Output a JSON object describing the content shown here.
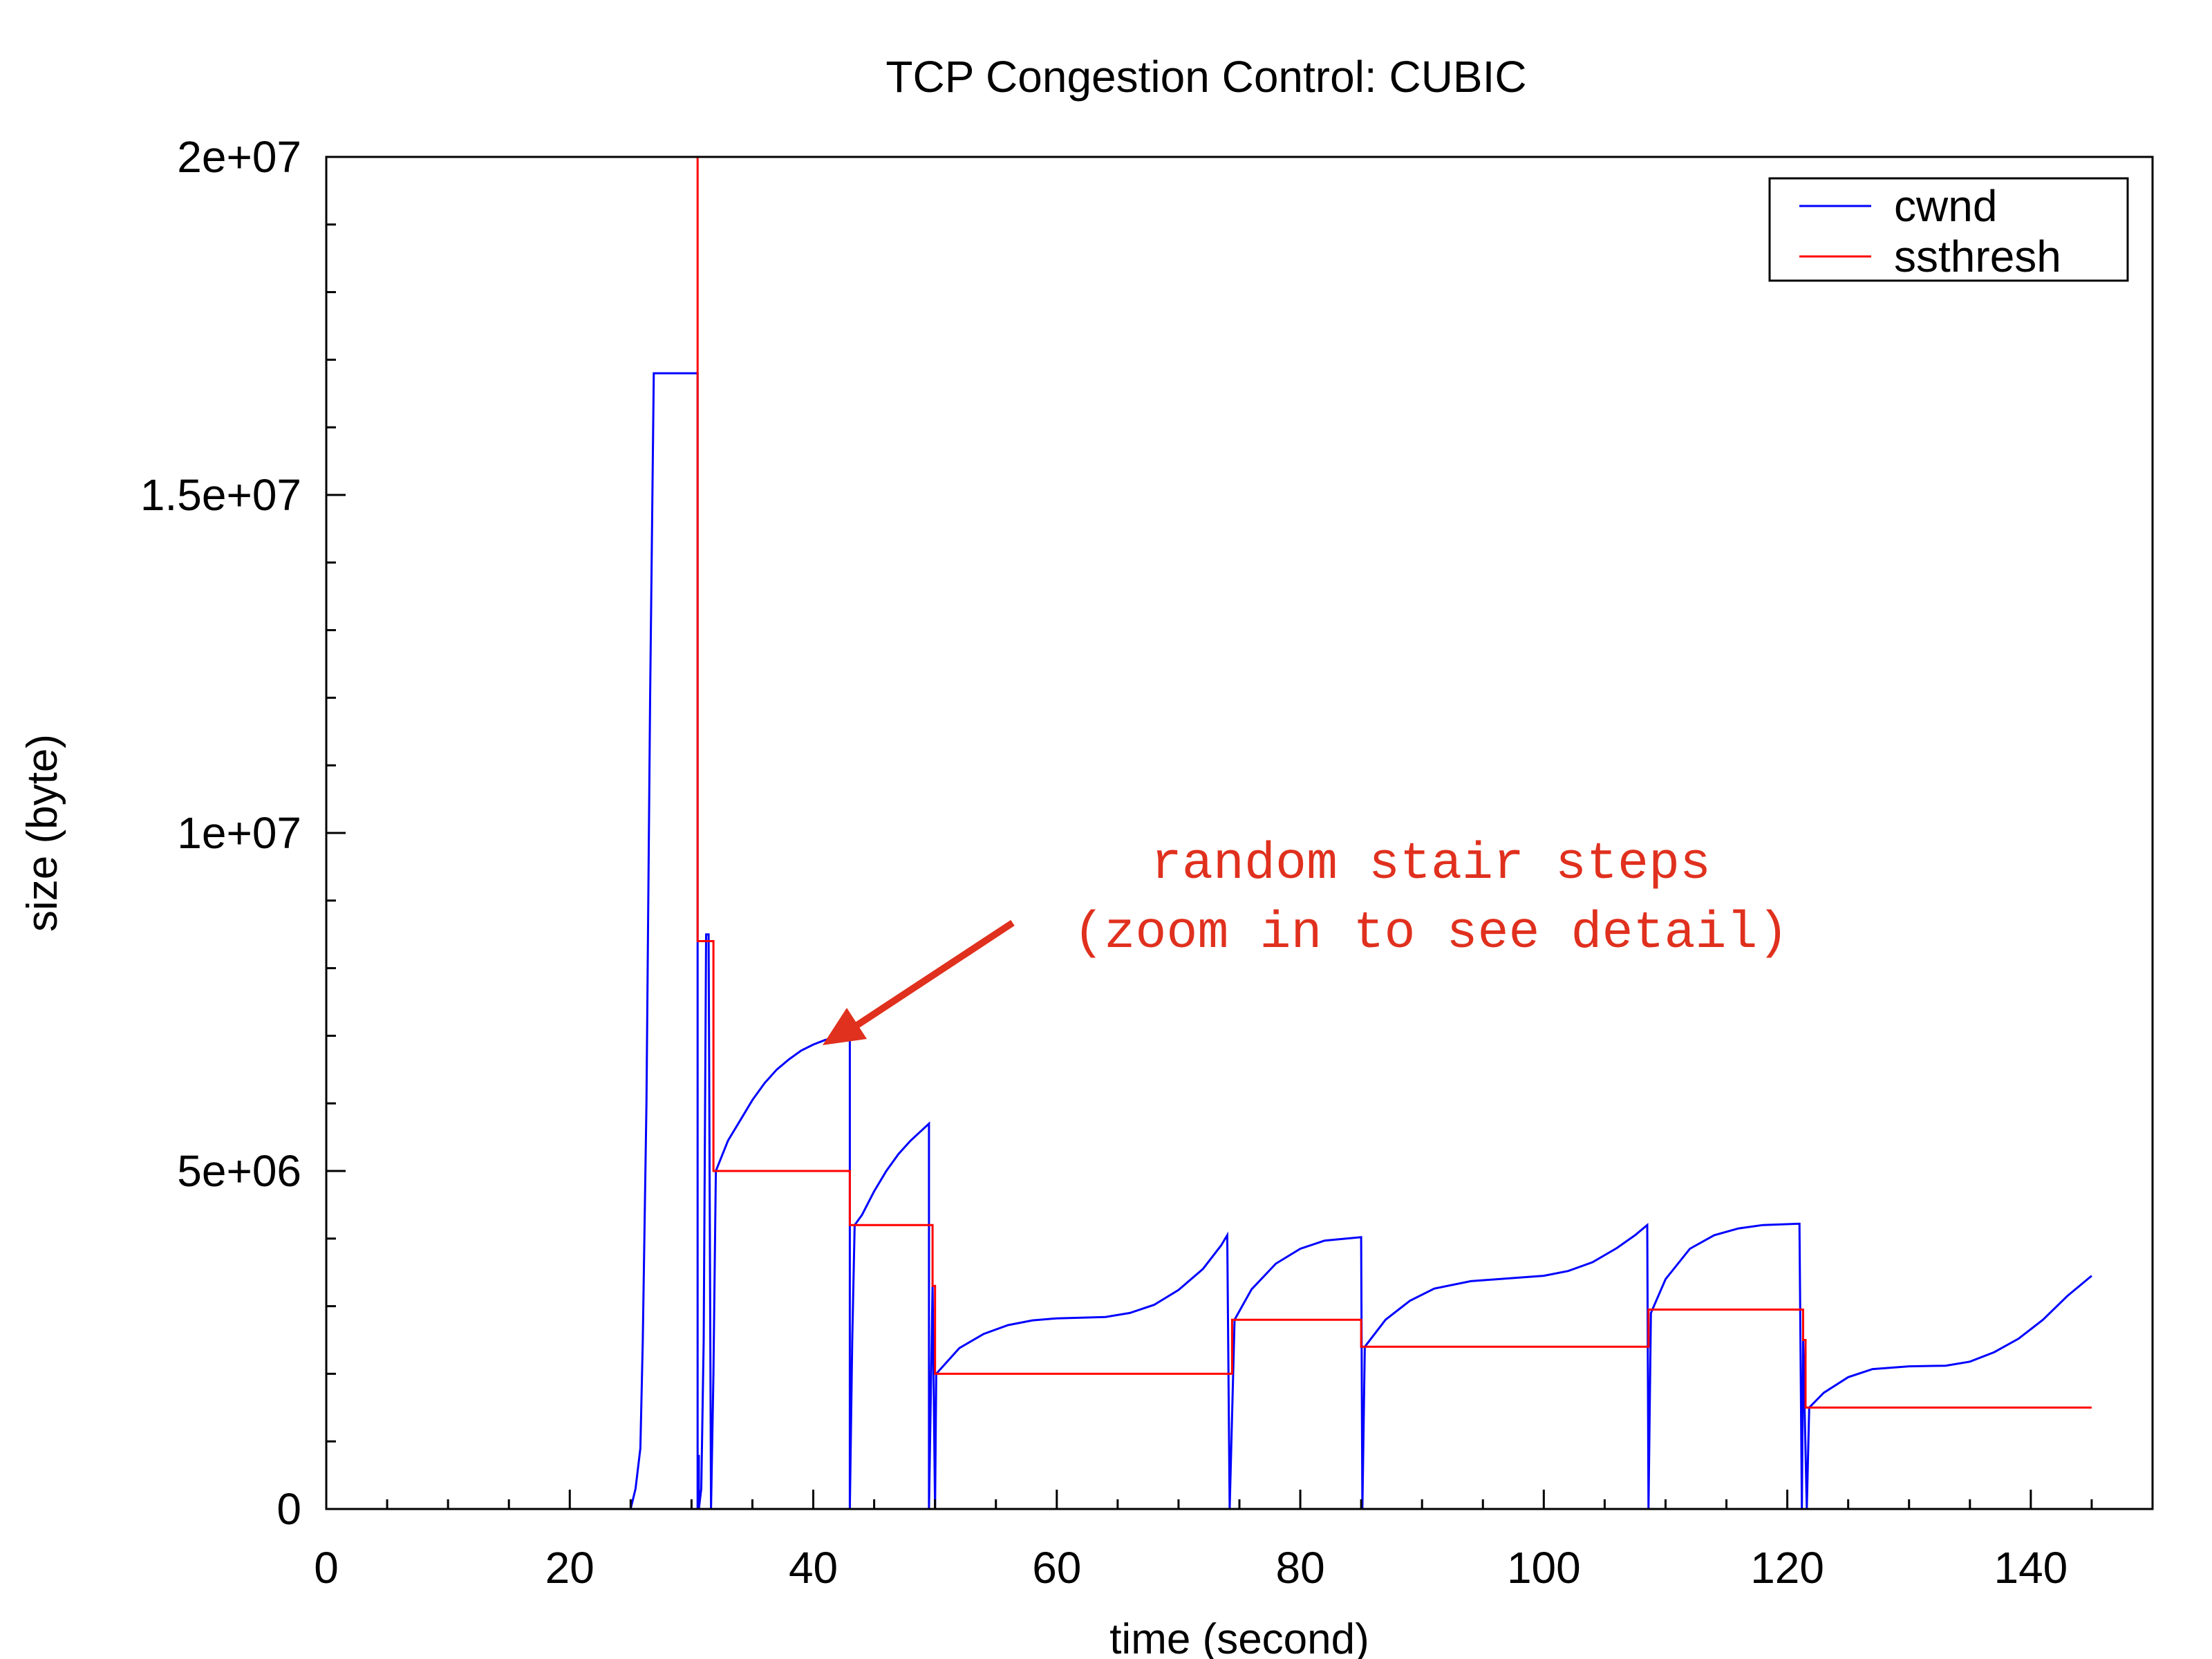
{
  "chart_data": {
    "type": "line",
    "title": "TCP Congestion Control: CUBIC",
    "xlabel": "time (second)",
    "ylabel": "size (byte)",
    "xlim": [
      0,
      150
    ],
    "ylim": [
      0,
      20000000
    ],
    "x_ticks": [
      0,
      20,
      40,
      60,
      80,
      100,
      120,
      140
    ],
    "x_tick_labels": [
      "0",
      "20",
      "40",
      "60",
      "80",
      "100",
      "120",
      "140"
    ],
    "x_minor_step": 5,
    "y_ticks": [
      0,
      5000000,
      10000000,
      15000000,
      20000000
    ],
    "y_tick_labels": [
      "0",
      "5e+06",
      "1e+07",
      "1.5e+07",
      "2e+07"
    ],
    "y_minor_step": 1000000,
    "grid": false,
    "legend_position": "top-right",
    "colors": {
      "cwnd": "#0000ff",
      "ssthresh": "#ff0000",
      "annotation": "#e0301e"
    },
    "series": [
      {
        "name": "cwnd",
        "points": [
          [
            0,
            0
          ],
          [
            25,
            0
          ],
          [
            25.4,
            300000
          ],
          [
            25.8,
            900000
          ],
          [
            26,
            2500000
          ],
          [
            26.3,
            6000000
          ],
          [
            26.6,
            12000000
          ],
          [
            26.9,
            16800000
          ],
          [
            30.5,
            16800000
          ],
          [
            30.5,
            0
          ],
          [
            30.6,
            800000
          ],
          [
            30.6,
            0
          ],
          [
            30.8,
            300000
          ],
          [
            31,
            2500000
          ],
          [
            31.2,
            8500000
          ],
          [
            31.4,
            8500000
          ],
          [
            31.6,
            0
          ],
          [
            31.8,
            2000000
          ],
          [
            32,
            5000000
          ],
          [
            33,
            5450000
          ],
          [
            34,
            5750000
          ],
          [
            35,
            6050000
          ],
          [
            36,
            6300000
          ],
          [
            37,
            6500000
          ],
          [
            38,
            6650000
          ],
          [
            39,
            6780000
          ],
          [
            40,
            6870000
          ],
          [
            41,
            6940000
          ],
          [
            42,
            6980000
          ],
          [
            43,
            7000000
          ],
          [
            43,
            0
          ],
          [
            43.2,
            2500000
          ],
          [
            43.4,
            4200000
          ],
          [
            44,
            4350000
          ],
          [
            45,
            4700000
          ],
          [
            46,
            5000000
          ],
          [
            47,
            5250000
          ],
          [
            48,
            5450000
          ],
          [
            49.5,
            5700000
          ],
          [
            49.5,
            0
          ],
          [
            49.8,
            3300000
          ],
          [
            50,
            0
          ],
          [
            50.1,
            2000000
          ],
          [
            52,
            2380000
          ],
          [
            54,
            2590000
          ],
          [
            56,
            2720000
          ],
          [
            58,
            2790000
          ],
          [
            60,
            2820000
          ],
          [
            62,
            2830000
          ],
          [
            64,
            2840000
          ],
          [
            66,
            2900000
          ],
          [
            68,
            3020000
          ],
          [
            70,
            3240000
          ],
          [
            72,
            3550000
          ],
          [
            73.5,
            3900000
          ],
          [
            74,
            4050000
          ],
          [
            74.2,
            0
          ],
          [
            74.6,
            2800000
          ],
          [
            76,
            3250000
          ],
          [
            78,
            3630000
          ],
          [
            80,
            3850000
          ],
          [
            82,
            3970000
          ],
          [
            85,
            4020000
          ],
          [
            85.1,
            0
          ],
          [
            85.3,
            2400000
          ],
          [
            87,
            2800000
          ],
          [
            89,
            3080000
          ],
          [
            91,
            3260000
          ],
          [
            94,
            3370000
          ],
          [
            97,
            3410000
          ],
          [
            100,
            3450000
          ],
          [
            102,
            3520000
          ],
          [
            104,
            3650000
          ],
          [
            106,
            3860000
          ],
          [
            107.5,
            4050000
          ],
          [
            108.5,
            4200000
          ],
          [
            108.6,
            0
          ],
          [
            108.8,
            2900000
          ],
          [
            110,
            3400000
          ],
          [
            112,
            3850000
          ],
          [
            114,
            4050000
          ],
          [
            116,
            4150000
          ],
          [
            118,
            4200000
          ],
          [
            121,
            4220000
          ],
          [
            121.2,
            0
          ],
          [
            121.3,
            2500000
          ],
          [
            121.6,
            0
          ],
          [
            121.8,
            1500000
          ],
          [
            123,
            1720000
          ],
          [
            125,
            1950000
          ],
          [
            127,
            2070000
          ],
          [
            130,
            2110000
          ],
          [
            133,
            2120000
          ],
          [
            135,
            2180000
          ],
          [
            137,
            2320000
          ],
          [
            139,
            2520000
          ],
          [
            141,
            2800000
          ],
          [
            143,
            3150000
          ],
          [
            145,
            3450000
          ]
        ]
      },
      {
        "name": "ssthresh",
        "points": [
          [
            30.5,
            20000000
          ],
          [
            30.5,
            8400000
          ],
          [
            31.8,
            8400000
          ],
          [
            31.8,
            5000000
          ],
          [
            43,
            5000000
          ],
          [
            43,
            4200000
          ],
          [
            49.8,
            4200000
          ],
          [
            49.8,
            3300000
          ],
          [
            50,
            3300000
          ],
          [
            50,
            2000000
          ],
          [
            74.4,
            2000000
          ],
          [
            74.4,
            2800000
          ],
          [
            85,
            2800000
          ],
          [
            85,
            2400000
          ],
          [
            108.6,
            2400000
          ],
          [
            108.6,
            2950000
          ],
          [
            121.3,
            2950000
          ],
          [
            121.3,
            2500000
          ],
          [
            121.5,
            2500000
          ],
          [
            121.5,
            1500000
          ],
          [
            145,
            1500000
          ]
        ]
      }
    ],
    "annotations": [
      {
        "lines": [
          "random stair steps",
          "(zoom in to see detail)"
        ],
        "arrow_to": [
          40.5,
          6950000
        ]
      }
    ]
  }
}
